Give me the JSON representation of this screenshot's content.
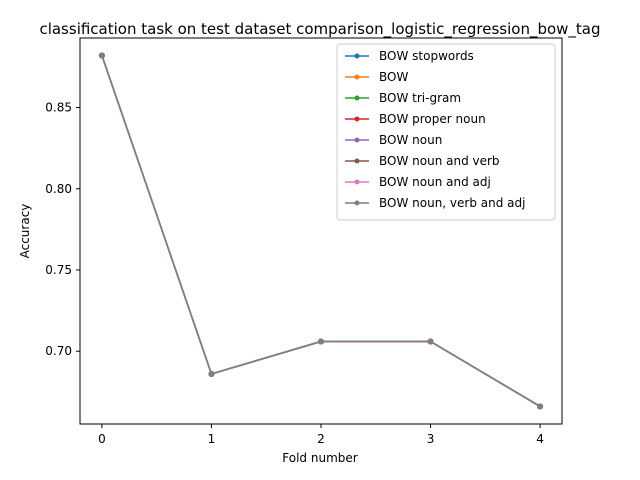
{
  "chart_data": {
    "type": "line",
    "title": "classification task on test dataset comparison_logistic_regression_bow_tag",
    "xlabel": "Fold number",
    "ylabel": "Accuracy",
    "x": [
      0,
      1,
      2,
      3,
      4
    ],
    "xlim": [
      -0.2,
      4.2
    ],
    "ylim": [
      0.6552,
      0.8928
    ],
    "xticks": [
      0,
      1,
      2,
      3,
      4
    ],
    "yticks": [
      0.7,
      0.75,
      0.8,
      0.85
    ],
    "ytick_labels": [
      "0.70",
      "0.75",
      "0.80",
      "0.85"
    ],
    "legend_position": "top-right",
    "grid": false,
    "series": [
      {
        "name": "BOW stopwords",
        "color": "#1f77b4",
        "values": [
          0.882,
          0.686,
          0.706,
          0.706,
          0.666
        ]
      },
      {
        "name": "BOW",
        "color": "#ff7f0e",
        "values": [
          0.882,
          0.686,
          0.706,
          0.706,
          0.666
        ]
      },
      {
        "name": "BOW tri-gram",
        "color": "#2ca02c",
        "values": [
          0.882,
          0.686,
          0.706,
          0.706,
          0.666
        ]
      },
      {
        "name": "BOW proper noun",
        "color": "#d62728",
        "values": [
          0.882,
          0.686,
          0.706,
          0.706,
          0.666
        ]
      },
      {
        "name": "BOW noun",
        "color": "#9467bd",
        "values": [
          0.882,
          0.686,
          0.706,
          0.706,
          0.666
        ]
      },
      {
        "name": "BOW noun and verb",
        "color": "#8c564b",
        "values": [
          0.882,
          0.686,
          0.706,
          0.706,
          0.666
        ]
      },
      {
        "name": "BOW noun and adj",
        "color": "#e377c2",
        "values": [
          0.882,
          0.686,
          0.706,
          0.706,
          0.666
        ]
      },
      {
        "name": "BOW noun, verb and adj",
        "color": "#7f7f7f",
        "values": [
          0.882,
          0.686,
          0.706,
          0.706,
          0.666
        ]
      }
    ]
  }
}
